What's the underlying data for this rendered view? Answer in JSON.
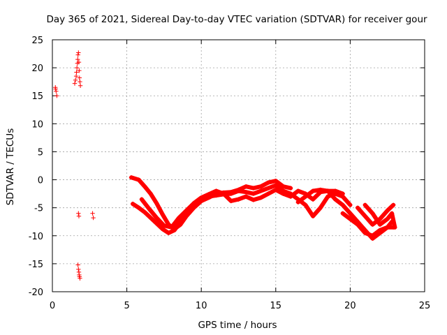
{
  "chart_data": {
    "type": "scatter",
    "title": "Day 365 of 2021, Sidereal Day-to-day VTEC variation (SDTVAR) for receiver gour",
    "xlabel": "GPS time / hours",
    "ylabel": "SDTVAR / TECUs",
    "xlim": [
      0,
      25
    ],
    "ylim": [
      -20,
      25
    ],
    "xticks": [
      0,
      5,
      10,
      15,
      20,
      25
    ],
    "yticks": [
      -20,
      -15,
      -10,
      -5,
      0,
      5,
      10,
      15,
      20,
      25
    ],
    "grid": true,
    "marker": "+",
    "color": "#ff0000",
    "series": [
      {
        "name": "scattered_points",
        "points": [
          [
            0.2,
            16.5
          ],
          [
            0.25,
            15.8
          ],
          [
            0.3,
            15.0
          ],
          [
            0.22,
            16.2
          ],
          [
            1.5,
            17.2
          ],
          [
            1.55,
            17.8
          ],
          [
            1.6,
            18.5
          ],
          [
            1.62,
            19.2
          ],
          [
            1.65,
            20.0
          ],
          [
            1.68,
            20.8
          ],
          [
            1.7,
            21.5
          ],
          [
            1.72,
            22.3
          ],
          [
            1.75,
            22.7
          ],
          [
            1.78,
            21.0
          ],
          [
            1.8,
            19.5
          ],
          [
            1.82,
            18.2
          ],
          [
            1.85,
            17.5
          ],
          [
            1.88,
            16.8
          ],
          [
            1.75,
            -6.0
          ],
          [
            1.78,
            -6.5
          ],
          [
            2.7,
            -6.0
          ],
          [
            2.75,
            -6.8
          ],
          [
            1.72,
            -15.2
          ],
          [
            1.75,
            -16.0
          ],
          [
            1.78,
            -16.5
          ],
          [
            1.8,
            -17.0
          ],
          [
            1.82,
            -17.3
          ],
          [
            1.85,
            -17.6
          ]
        ]
      },
      {
        "name": "track_1",
        "points": [
          [
            5.3,
            0.4
          ],
          [
            5.8,
            0.0
          ],
          [
            6.2,
            -1.2
          ],
          [
            6.6,
            -2.5
          ],
          [
            7.0,
            -4.2
          ],
          [
            7.4,
            -6.2
          ],
          [
            7.8,
            -8.0
          ],
          [
            8.2,
            -8.8
          ],
          [
            8.6,
            -8.0
          ],
          [
            9.0,
            -6.5
          ],
          [
            9.5,
            -5.0
          ],
          [
            10.0,
            -3.8
          ],
          [
            10.5,
            -3.2
          ],
          [
            11.0,
            -2.5
          ],
          [
            11.5,
            -2.3
          ],
          [
            12.0,
            -2.2
          ],
          [
            12.5,
            -1.8
          ],
          [
            13.0,
            -1.2
          ],
          [
            13.5,
            -1.5
          ],
          [
            14.0,
            -1.2
          ],
          [
            14.5,
            -0.5
          ],
          [
            15.0,
            -0.2
          ],
          [
            15.5,
            -1.2
          ],
          [
            16.0,
            -1.5
          ]
        ]
      },
      {
        "name": "track_2",
        "points": [
          [
            5.4,
            -4.3
          ],
          [
            5.8,
            -5.0
          ],
          [
            6.2,
            -5.8
          ],
          [
            6.6,
            -6.8
          ],
          [
            7.0,
            -7.8
          ],
          [
            7.4,
            -8.8
          ],
          [
            7.8,
            -9.5
          ],
          [
            8.2,
            -9.0
          ],
          [
            8.6,
            -7.5
          ],
          [
            9.0,
            -5.8
          ],
          [
            9.5,
            -4.5
          ],
          [
            10.0,
            -3.5
          ],
          [
            10.5,
            -3.0
          ],
          [
            11.0,
            -2.8
          ],
          [
            11.5,
            -2.6
          ],
          [
            12.0,
            -2.5
          ],
          [
            12.5,
            -2.0
          ],
          [
            13.0,
            -2.2
          ],
          [
            13.5,
            -2.5
          ],
          [
            14.0,
            -2.0
          ],
          [
            14.5,
            -1.5
          ],
          [
            15.0,
            -1.0
          ],
          [
            15.5,
            -2.0
          ],
          [
            16.0,
            -2.5
          ],
          [
            16.5,
            -3.5
          ],
          [
            17.0,
            -4.5
          ],
          [
            17.5,
            -6.5
          ],
          [
            18.0,
            -5.0
          ],
          [
            18.5,
            -3.0
          ],
          [
            19.0,
            -2.5
          ],
          [
            19.5,
            -3.0
          ],
          [
            20.0,
            -4.5
          ]
        ]
      },
      {
        "name": "track_3",
        "points": [
          [
            6.0,
            -3.5
          ],
          [
            6.5,
            -5.2
          ],
          [
            7.0,
            -6.8
          ],
          [
            7.5,
            -8.2
          ],
          [
            8.0,
            -8.5
          ],
          [
            8.5,
            -6.8
          ],
          [
            9.0,
            -5.5
          ],
          [
            9.5,
            -4.2
          ],
          [
            10.0,
            -3.2
          ],
          [
            10.5,
            -2.6
          ],
          [
            11.0,
            -2.0
          ],
          [
            11.5,
            -2.5
          ],
          [
            12.0,
            -3.8
          ],
          [
            12.5,
            -3.5
          ],
          [
            13.0,
            -3.0
          ],
          [
            13.5,
            -3.6
          ],
          [
            14.0,
            -3.2
          ],
          [
            14.5,
            -2.5
          ],
          [
            15.0,
            -1.8
          ],
          [
            15.5,
            -2.5
          ],
          [
            16.0,
            -3.0
          ],
          [
            16.5,
            -2.0
          ],
          [
            17.0,
            -2.5
          ],
          [
            17.5,
            -3.5
          ],
          [
            18.0,
            -2.2
          ],
          [
            18.5,
            -2.0
          ],
          [
            19.0,
            -2.0
          ],
          [
            19.5,
            -2.5
          ]
        ]
      },
      {
        "name": "track_4",
        "points": [
          [
            16.5,
            -4.0
          ],
          [
            17.0,
            -3.0
          ],
          [
            17.5,
            -2.0
          ],
          [
            18.0,
            -1.8
          ],
          [
            18.5,
            -2.0
          ],
          [
            19.0,
            -3.5
          ],
          [
            19.5,
            -4.5
          ],
          [
            20.0,
            -6.0
          ],
          [
            20.5,
            -7.5
          ],
          [
            21.0,
            -9.0
          ],
          [
            21.5,
            -10.5
          ],
          [
            22.0,
            -9.5
          ],
          [
            22.5,
            -8.5
          ],
          [
            22.8,
            -7.5
          ]
        ]
      },
      {
        "name": "track_5",
        "points": [
          [
            19.5,
            -6.0
          ],
          [
            20.0,
            -7.0
          ],
          [
            20.5,
            -8.0
          ],
          [
            21.0,
            -9.5
          ],
          [
            21.5,
            -10.0
          ],
          [
            22.0,
            -9.0
          ],
          [
            22.5,
            -8.5
          ],
          [
            22.9,
            -8.5
          ]
        ]
      },
      {
        "name": "track_6",
        "points": [
          [
            20.5,
            -5.0
          ],
          [
            21.0,
            -6.5
          ],
          [
            21.5,
            -8.0
          ],
          [
            22.0,
            -7.0
          ],
          [
            22.5,
            -5.5
          ],
          [
            22.9,
            -4.5
          ]
        ]
      },
      {
        "name": "track_7",
        "points": [
          [
            21.0,
            -4.5
          ],
          [
            21.5,
            -6.0
          ],
          [
            22.0,
            -8.0
          ],
          [
            22.5,
            -7.0
          ],
          [
            22.8,
            -6.0
          ],
          [
            23.0,
            -8.5
          ]
        ]
      }
    ]
  }
}
